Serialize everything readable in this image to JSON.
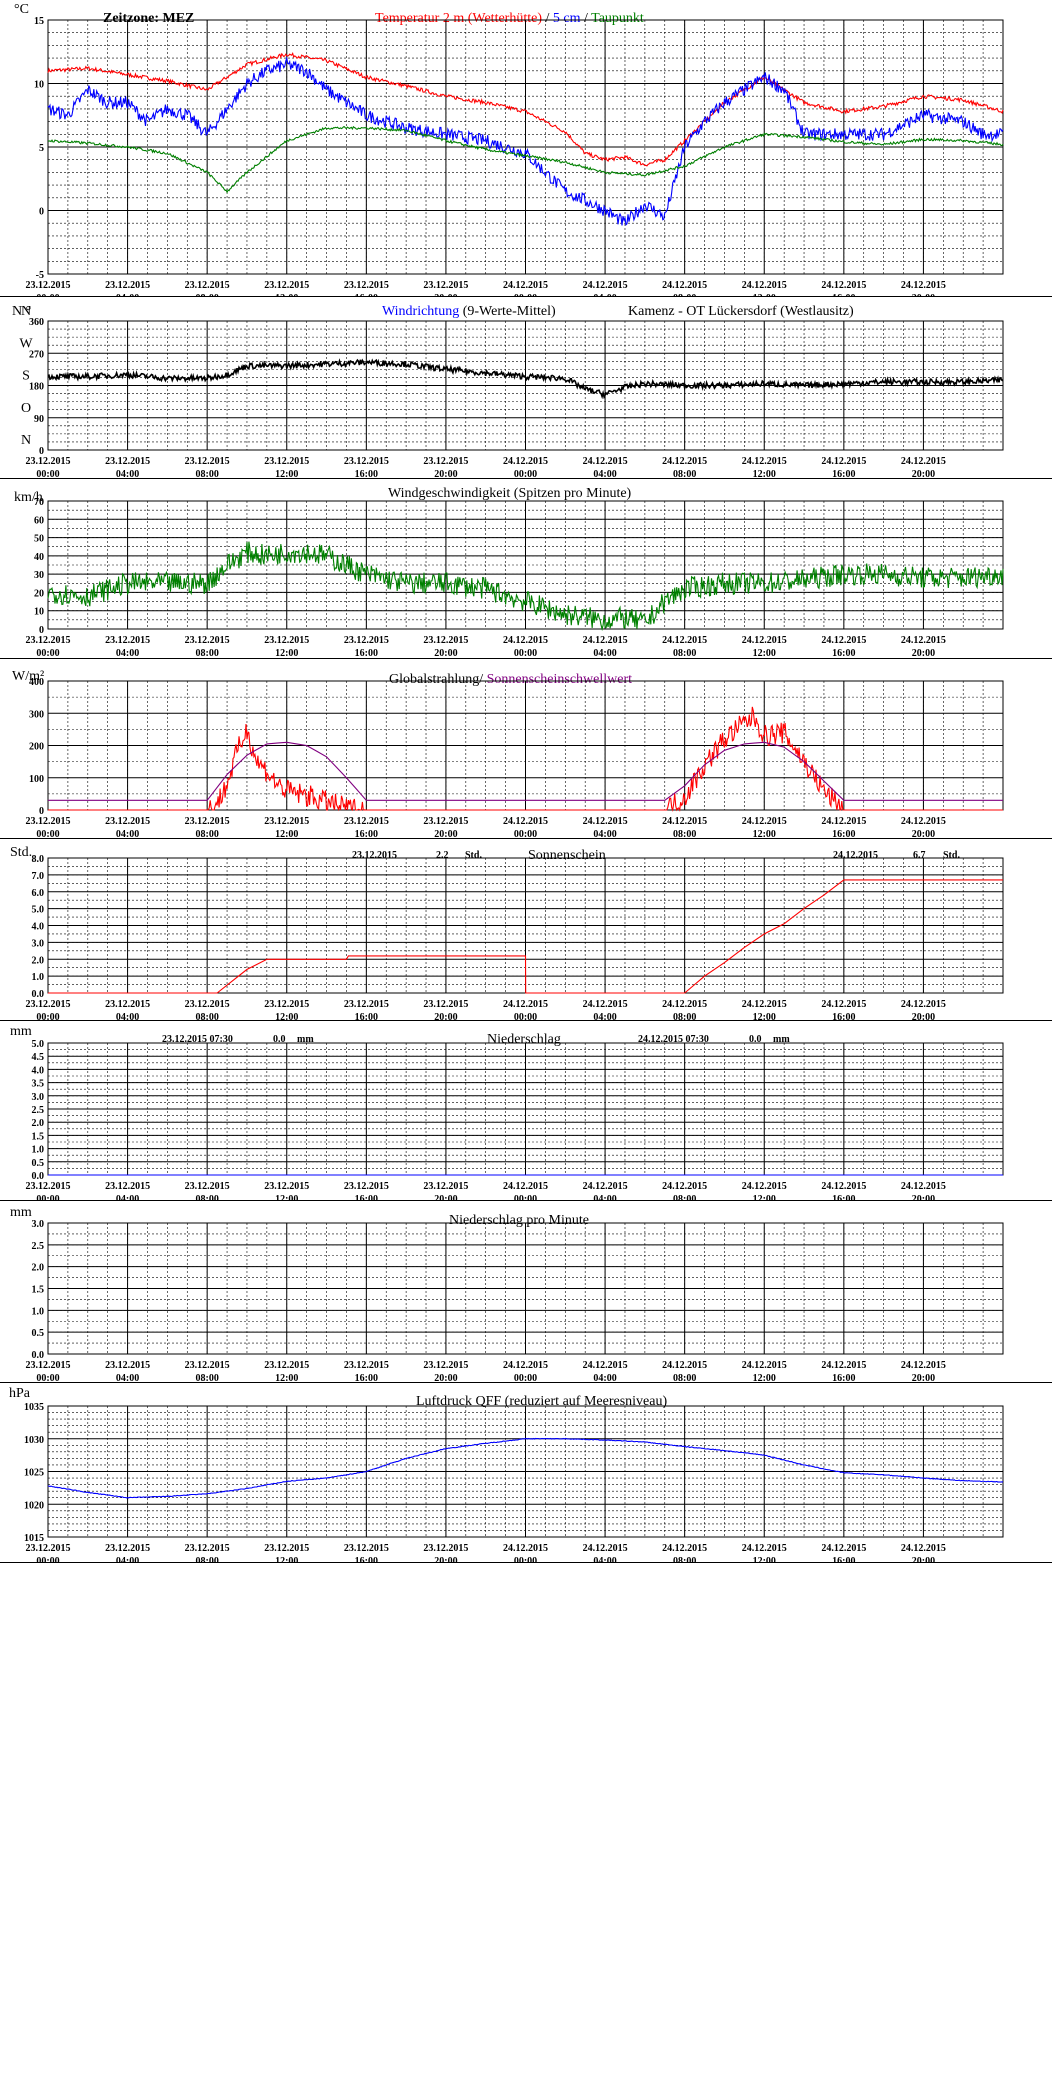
{
  "time_labels": [
    [
      "23.12.2015",
      "00:00"
    ],
    [
      "23.12.2015",
      "04:00"
    ],
    [
      "23.12.2015",
      "08:00"
    ],
    [
      "23.12.2015",
      "12:00"
    ],
    [
      "23.12.2015",
      "16:00"
    ],
    [
      "23.12.2015",
      "20:00"
    ],
    [
      "24.12.2015",
      "00:00"
    ],
    [
      "24.12.2015",
      "04:00"
    ],
    [
      "24.12.2015",
      "08:00"
    ],
    [
      "24.12.2015",
      "12:00"
    ],
    [
      "24.12.2015",
      "16:00"
    ],
    [
      "24.12.2015",
      "20:00"
    ]
  ],
  "colors": {
    "red": "#ff0000",
    "blue": "#0000ff",
    "green": "#008000",
    "purple": "#800080",
    "black": "#000000"
  },
  "panels": {
    "temp": {
      "unit": "°C",
      "zone": "Zeitzone: MEZ",
      "title_red": "Temperatur 2 m (Wetterhütte)",
      "title_sep": " / ",
      "title_blue": "5 cm",
      "title_slash": " / ",
      "title_green": "Taupunkt",
      "yticks": [
        "15",
        "10",
        "5",
        "0",
        "-5"
      ]
    },
    "wind_dir": {
      "unit": "N °",
      "title_blue": "Windrichtung",
      "title_rest": "(9-Werte-Mittel)",
      "station": "Kamenz - OT Lückersdorf (Westlausitz)",
      "yticks": [
        "360",
        "270",
        "180",
        "90",
        "0"
      ],
      "compass": [
        "N",
        "W",
        "S",
        "O",
        "N"
      ]
    },
    "wind_speed": {
      "unit": "km/h",
      "title": "Windgeschwindigkeit (Spitzen pro Minute)",
      "yticks": [
        "70",
        "60",
        "50",
        "40",
        "30",
        "20",
        "10",
        "0"
      ]
    },
    "radiation": {
      "unit": "W/m²",
      "title_black": "Globalstrahlung/",
      "title_purple": "Sonnenscheinschwellwert",
      "yticks": [
        "400",
        "300",
        "200",
        "100",
        "0"
      ]
    },
    "sunshine": {
      "unit": "Std.",
      "title": "Sonnenschein",
      "day1_date": "23.12.2015",
      "day1_val": "2.2",
      "day1_unit": "Std.",
      "day2_date": "24.12.2015",
      "day2_val": "6.7",
      "day2_unit": "Std.",
      "yticks": [
        "8.0",
        "7.0",
        "6.0",
        "5.0",
        "4.0",
        "3.0",
        "2.0",
        "1.0",
        "0.0"
      ]
    },
    "precip": {
      "unit": "mm",
      "title": "Niederschlag",
      "day1_date": "23.12.2015 07:30",
      "day1_val": "0.0",
      "day1_unit": "mm",
      "day2_date": "24.12.2015 07:30",
      "day2_val": "0.0",
      "day2_unit": "mm",
      "yticks": [
        "5.0",
        "4.5",
        "4.0",
        "3.5",
        "3.0",
        "2.5",
        "2.0",
        "1.5",
        "1.0",
        "0.5",
        "0.0"
      ]
    },
    "precip_min": {
      "unit": "mm",
      "title": "Niederschlag pro Minute",
      "yticks": [
        "3.0",
        "2.5",
        "2.0",
        "1.5",
        "1.0",
        "0.5",
        "0.0"
      ]
    },
    "pressure": {
      "unit": "hPa",
      "title": "Luftdruck QFF (reduziert auf Meeresniveau)",
      "yticks": [
        "1035",
        "1030",
        "1025",
        "1020",
        "1015"
      ]
    }
  },
  "chart_data": [
    {
      "type": "line",
      "title": "Temperatur 2 m (Wetterhütte) / 5 cm / Taupunkt",
      "ylabel": "°C",
      "ylim": [
        -5,
        15
      ],
      "x_unit": "hours since 23.12.2015 00:00",
      "xlim": [
        0,
        48
      ],
      "series": [
        {
          "name": "Temperatur 2 m (Wetterhütte)",
          "color": "#ff0000",
          "x": [
            0,
            2,
            4,
            6,
            8,
            10,
            12,
            14,
            16,
            18,
            20,
            22,
            24,
            26,
            27,
            28,
            29,
            30,
            31,
            32,
            34,
            36,
            38,
            40,
            42,
            44,
            46,
            48
          ],
          "y": [
            11,
            11.2,
            10.7,
            10.2,
            9.5,
            11.5,
            12.3,
            11.8,
            10.5,
            9.8,
            9,
            8.5,
            7.8,
            6.2,
            4.5,
            4,
            4.2,
            3.6,
            4,
            5.5,
            8.5,
            10.5,
            8.5,
            7.8,
            8.2,
            9,
            8.7,
            7.8
          ]
        },
        {
          "name": "5 cm",
          "color": "#0000ff",
          "x": [
            0,
            1,
            2,
            3,
            4,
            5,
            6,
            7,
            8,
            9,
            10,
            11,
            12,
            13,
            14,
            16,
            18,
            20,
            22,
            24,
            25,
            26,
            27,
            28,
            29,
            30,
            31,
            32,
            33,
            34,
            35,
            36,
            37,
            38,
            40,
            42,
            44,
            46,
            47,
            48
          ],
          "y": [
            8,
            7.5,
            9.5,
            8.5,
            8.5,
            7,
            8,
            7.5,
            6,
            8,
            10,
            11,
            11.5,
            11,
            9.5,
            7.5,
            6.5,
            6,
            5.5,
            4.5,
            3,
            1.5,
            0.8,
            0,
            -1,
            0.5,
            -0.5,
            5,
            7,
            8.5,
            9.5,
            10.5,
            9.5,
            6,
            6,
            6,
            7.5,
            7,
            6,
            6
          ]
        },
        {
          "name": "Taupunkt",
          "color": "#008000",
          "x": [
            0,
            2,
            4,
            6,
            8,
            9,
            10,
            12,
            14,
            16,
            18,
            20,
            22,
            24,
            26,
            28,
            30,
            32,
            34,
            36,
            38,
            40,
            42,
            44,
            46,
            48
          ],
          "y": [
            5.5,
            5.3,
            5,
            4.5,
            3,
            1.5,
            3,
            5.5,
            6.5,
            6.5,
            6.3,
            5.5,
            4.8,
            4.3,
            3.8,
            3,
            2.8,
            3.5,
            5,
            6,
            5.8,
            5.4,
            5.2,
            5.6,
            5.5,
            5.2
          ]
        }
      ]
    },
    {
      "type": "line",
      "title": "Windrichtung (9-Werte-Mittel)",
      "ylabel": "N °",
      "ylim": [
        0,
        360
      ],
      "x_unit": "hours since 23.12.2015 00:00",
      "xlim": [
        0,
        48
      ],
      "series": [
        {
          "name": "Windrichtung",
          "color": "#000000",
          "x": [
            0,
            2,
            4,
            6,
            8,
            9,
            10,
            12,
            14,
            16,
            18,
            20,
            22,
            24,
            26,
            27,
            28,
            29,
            30,
            32,
            34,
            36,
            38,
            40,
            42,
            44,
            46,
            48
          ],
          "y": [
            205,
            205,
            210,
            200,
            200,
            210,
            235,
            235,
            240,
            245,
            240,
            225,
            215,
            205,
            200,
            170,
            155,
            175,
            185,
            180,
            180,
            185,
            180,
            185,
            190,
            190,
            190,
            195
          ]
        }
      ]
    },
    {
      "type": "line",
      "title": "Windgeschwindigkeit (Spitzen pro Minute)",
      "ylabel": "km/h",
      "ylim": [
        0,
        70
      ],
      "x_unit": "hours since 23.12.2015 00:00",
      "xlim": [
        0,
        48
      ],
      "series": [
        {
          "name": "Windgeschwindigkeit",
          "color": "#008000",
          "x": [
            0,
            2,
            4,
            6,
            8,
            9,
            10,
            11,
            12,
            13,
            14,
            15,
            16,
            18,
            20,
            22,
            24,
            26,
            28,
            29,
            30,
            31,
            32,
            34,
            36,
            38,
            40,
            42,
            44,
            46,
            48
          ],
          "y": [
            20,
            18,
            25,
            25,
            25,
            35,
            42,
            40,
            42,
            42,
            40,
            35,
            30,
            25,
            25,
            22,
            15,
            8,
            5,
            6,
            3,
            15,
            22,
            25,
            25,
            27,
            30,
            30,
            28,
            28,
            30
          ]
        }
      ]
    },
    {
      "type": "line",
      "title": "Globalstrahlung/ Sonnenscheinschwellwert",
      "ylabel": "W/m²",
      "ylim": [
        0,
        400
      ],
      "x_unit": "hours since 23.12.2015 00:00",
      "xlim": [
        0,
        48
      ],
      "series": [
        {
          "name": "Globalstrahlung",
          "color": "#ff0000",
          "x": [
            0,
            8,
            8.5,
            9,
            9.5,
            10,
            10.5,
            11,
            11.5,
            12,
            13,
            14,
            15,
            16,
            24,
            31,
            32,
            33,
            34,
            35,
            35.5,
            36,
            37,
            38,
            39,
            40,
            48
          ],
          "y": [
            0,
            0,
            20,
            80,
            180,
            250,
            150,
            120,
            80,
            60,
            45,
            25,
            5,
            0,
            0,
            0,
            40,
            140,
            220,
            270,
            290,
            230,
            240,
            150,
            60,
            0,
            0
          ]
        },
        {
          "name": "Sonnenscheinschwellwert",
          "color": "#800080",
          "x": [
            0,
            8,
            9,
            10,
            11,
            12,
            13,
            14,
            15,
            16,
            24,
            31,
            32,
            33,
            34,
            35,
            36,
            37,
            38,
            39,
            40,
            48
          ],
          "y": [
            30,
            30,
            110,
            170,
            205,
            210,
            200,
            165,
            100,
            30,
            30,
            30,
            75,
            140,
            185,
            205,
            210,
            195,
            150,
            90,
            30,
            30
          ]
        }
      ]
    },
    {
      "type": "line",
      "title": "Sonnenschein",
      "ylabel": "Std.",
      "ylim": [
        0,
        8
      ],
      "x_unit": "hours since 23.12.2015 00:00",
      "xlim": [
        0,
        48
      ],
      "series": [
        {
          "name": "Sonnenschein",
          "color": "#ff0000",
          "x": [
            0,
            8.5,
            10,
            11,
            15,
            15.1,
            24,
            24.01,
            32,
            33,
            34,
            35,
            36,
            37,
            38,
            39,
            40,
            48
          ],
          "y": [
            0,
            0,
            1.4,
            2,
            2,
            2.2,
            2.2,
            0,
            0,
            1,
            1.8,
            2.7,
            3.5,
            4.1,
            5,
            5.8,
            6.7,
            6.7
          ]
        }
      ]
    },
    {
      "type": "line",
      "title": "Niederschlag",
      "ylabel": "mm",
      "ylim": [
        0,
        5
      ],
      "series": [
        {
          "name": "Niederschlag",
          "color": "#0000ff",
          "x": [
            0,
            48
          ],
          "y": [
            0,
            0
          ]
        }
      ]
    },
    {
      "type": "line",
      "title": "Niederschlag pro Minute",
      "ylabel": "mm",
      "ylim": [
        0,
        3
      ],
      "series": []
    },
    {
      "type": "line",
      "title": "Luftdruck QFF (reduziert auf Meeresniveau)",
      "ylabel": "hPa",
      "ylim": [
        1015,
        1035
      ],
      "x_unit": "hours since 23.12.2015 00:00",
      "xlim": [
        0,
        48
      ],
      "series": [
        {
          "name": "Luftdruck",
          "color": "#0000ff",
          "x": [
            0,
            2,
            4,
            6,
            8,
            10,
            12,
            14,
            16,
            18,
            20,
            22,
            24,
            26,
            28,
            30,
            32,
            34,
            36,
            38,
            40,
            42,
            44,
            46,
            48
          ],
          "y": [
            1022.8,
            1021.8,
            1021,
            1021.2,
            1021.6,
            1022.4,
            1023.5,
            1024,
            1025,
            1027,
            1028.5,
            1029.3,
            1030,
            1030,
            1029.8,
            1029.5,
            1028.8,
            1028.2,
            1027.5,
            1026,
            1024.8,
            1024.5,
            1024,
            1023.6,
            1023.4
          ]
        }
      ]
    }
  ]
}
